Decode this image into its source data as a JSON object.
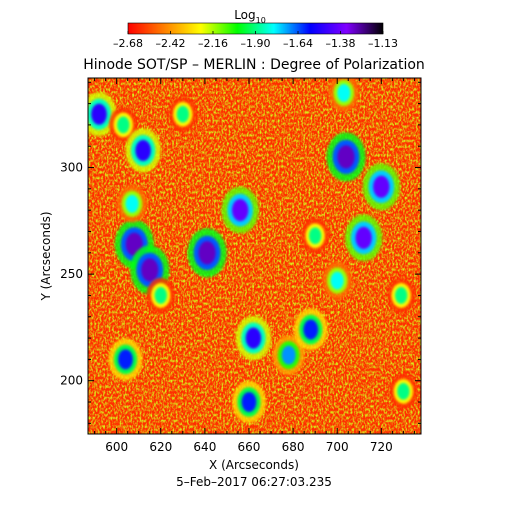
{
  "chart_data": {
    "type": "heatmap",
    "title": "Hinode SOT/SP – MERLIN : Degree of Polarization",
    "subtitle": "5–Feb–2017 06:27:03.235",
    "xlabel": "X (Arcseconds)",
    "ylabel": "Y (Arcseconds)",
    "xlim": [
      587,
      738
    ],
    "ylim": [
      175,
      342
    ],
    "xticks": [
      600,
      620,
      640,
      660,
      680,
      700,
      720
    ],
    "yticks": [
      200,
      250,
      300
    ],
    "colorbar": {
      "label": "Log",
      "label_sub": "10",
      "range": [
        -2.68,
        -1.13
      ],
      "ticks": [
        "–2.68",
        "–2.42",
        "–2.16",
        "–1.90",
        "–1.64",
        "–1.38",
        "–1.13"
      ],
      "colors": [
        "#ff0000",
        "#ff8000",
        "#ffff00",
        "#00ff00",
        "#00ffff",
        "#0000ff",
        "#8000ff",
        "#000000"
      ]
    },
    "background_value": -2.6,
    "features": [
      {
        "x": 608,
        "y": 264,
        "value": -1.3
      },
      {
        "x": 615,
        "y": 252,
        "value": -1.3
      },
      {
        "x": 641,
        "y": 260,
        "value": -1.3
      },
      {
        "x": 656,
        "y": 280,
        "value": -1.4
      },
      {
        "x": 704,
        "y": 305,
        "value": -1.3
      },
      {
        "x": 720,
        "y": 291,
        "value": -1.4
      },
      {
        "x": 712,
        "y": 267,
        "value": -1.4
      },
      {
        "x": 592,
        "y": 325,
        "value": -1.5
      },
      {
        "x": 607,
        "y": 283,
        "value": -1.8
      },
      {
        "x": 662,
        "y": 220,
        "value": -1.5
      },
      {
        "x": 678,
        "y": 212,
        "value": -1.7
      },
      {
        "x": 688,
        "y": 224,
        "value": -1.6
      },
      {
        "x": 604,
        "y": 210,
        "value": -1.6
      },
      {
        "x": 690,
        "y": 268,
        "value": -1.9
      },
      {
        "x": 700,
        "y": 247,
        "value": -1.8
      },
      {
        "x": 603,
        "y": 320,
        "value": -1.9
      },
      {
        "x": 612,
        "y": 308,
        "value": -1.5
      },
      {
        "x": 630,
        "y": 325,
        "value": -1.9
      },
      {
        "x": 729,
        "y": 240,
        "value": -1.9
      },
      {
        "x": 660,
        "y": 190,
        "value": -1.6
      },
      {
        "x": 620,
        "y": 240,
        "value": -1.9
      },
      {
        "x": 703,
        "y": 335,
        "value": -1.8
      },
      {
        "x": 730,
        "y": 195,
        "value": -1.9
      }
    ]
  }
}
